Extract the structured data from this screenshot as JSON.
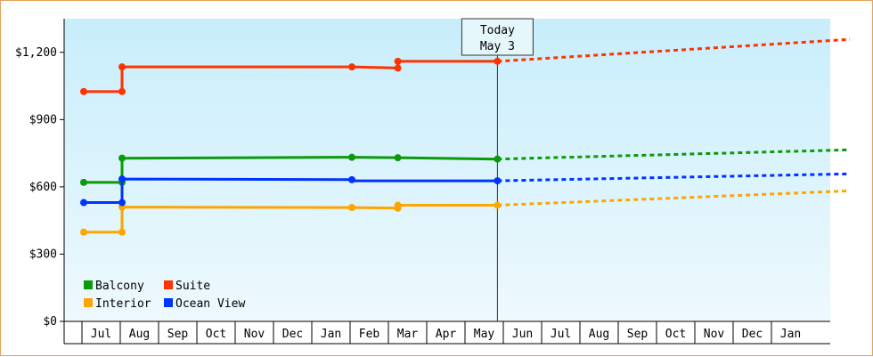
{
  "chart_data": {
    "type": "line",
    "title": "",
    "xlabel": "",
    "ylabel": "",
    "ylim": [
      0,
      1350
    ],
    "yticks": [
      0,
      300,
      600,
      900,
      1200
    ],
    "ytick_labels": [
      "$0",
      "$300",
      "$600",
      "$900",
      "$1,200"
    ],
    "x_months": [
      "",
      "Jul",
      "Aug",
      "Sep",
      "Oct",
      "Nov",
      "Dec",
      "Jan",
      "Feb",
      "Mar",
      "Apr",
      "May",
      "Jun",
      "Jul",
      "Aug",
      "Sep",
      "Oct",
      "Nov",
      "Dec",
      "Jan"
    ],
    "grid": false,
    "legend_placement": "bottom-left",
    "today_marker": {
      "line1": "Today",
      "line2": "May 3",
      "x": 10.8
    },
    "series": [
      {
        "name": "Balcony",
        "color": "#0a9a0a",
        "history": [
          [
            0.0,
            620
          ],
          [
            1.0,
            620
          ],
          [
            1.0,
            728
          ],
          [
            7.0,
            732
          ],
          [
            8.2,
            730
          ],
          [
            10.8,
            724
          ]
        ],
        "forecast": [
          [
            10.8,
            724
          ],
          [
            20.0,
            765
          ]
        ]
      },
      {
        "name": "Suite",
        "color": "#ff3300",
        "history": [
          [
            0.0,
            1025
          ],
          [
            1.0,
            1025
          ],
          [
            1.0,
            1135
          ],
          [
            7.0,
            1135
          ],
          [
            8.2,
            1130
          ],
          [
            8.2,
            1160
          ],
          [
            10.8,
            1160
          ]
        ],
        "forecast": [
          [
            10.8,
            1160
          ],
          [
            20.0,
            1258
          ]
        ]
      },
      {
        "name": "Interior",
        "color": "#ffa500",
        "history": [
          [
            0.0,
            398
          ],
          [
            1.0,
            398
          ],
          [
            1.0,
            510
          ],
          [
            7.0,
            508
          ],
          [
            8.2,
            505
          ],
          [
            8.2,
            518
          ],
          [
            10.8,
            518
          ]
        ],
        "forecast": [
          [
            10.8,
            518
          ],
          [
            20.0,
            582
          ]
        ]
      },
      {
        "name": "Ocean View",
        "color": "#0033ff",
        "history": [
          [
            0.0,
            530
          ],
          [
            1.0,
            530
          ],
          [
            1.0,
            635
          ],
          [
            7.0,
            632
          ],
          [
            7.0,
            627
          ],
          [
            10.8,
            627
          ]
        ],
        "forecast": [
          [
            10.8,
            627
          ],
          [
            20.0,
            658
          ]
        ]
      }
    ],
    "markers": {
      "Balcony": [
        [
          0.0,
          620
        ],
        [
          1.0,
          620
        ],
        [
          1.0,
          728
        ],
        [
          7.0,
          732
        ],
        [
          8.2,
          730
        ],
        [
          10.8,
          724
        ]
      ],
      "Suite": [
        [
          0.0,
          1025
        ],
        [
          1.0,
          1025
        ],
        [
          1.0,
          1135
        ],
        [
          7.0,
          1135
        ],
        [
          8.2,
          1130
        ],
        [
          8.2,
          1160
        ],
        [
          10.8,
          1160
        ]
      ],
      "Interior": [
        [
          0.0,
          398
        ],
        [
          1.0,
          398
        ],
        [
          1.0,
          510
        ],
        [
          7.0,
          508
        ],
        [
          8.2,
          505
        ],
        [
          8.2,
          518
        ],
        [
          10.8,
          518
        ]
      ],
      "Ocean View": [
        [
          0.0,
          530
        ],
        [
          1.0,
          530
        ],
        [
          1.0,
          635
        ],
        [
          7.0,
          632
        ],
        [
          10.8,
          627
        ]
      ]
    },
    "legend_order": [
      "Balcony",
      "Suite",
      "Interior",
      "Ocean View"
    ]
  }
}
